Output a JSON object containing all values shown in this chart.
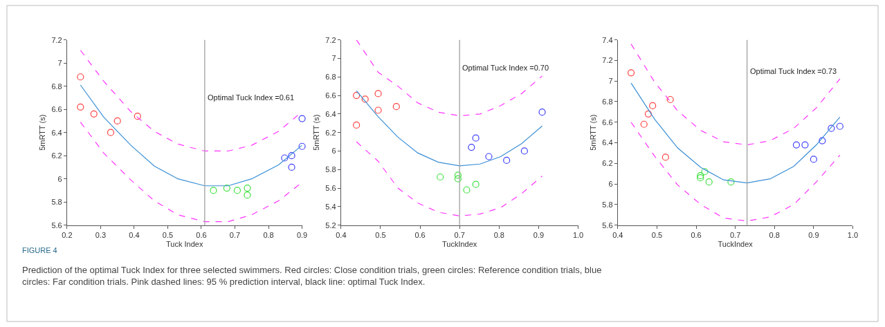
{
  "chart_data": [
    {
      "type": "scatter",
      "xlabel": "Tuck Index",
      "ylabel": "5mRTT (s)",
      "xlim": [
        0.2,
        0.9
      ],
      "xticks": [
        0.2,
        0.3,
        0.4,
        0.5,
        0.6,
        0.7,
        0.8,
        0.9
      ],
      "ylim": [
        5.6,
        7.2
      ],
      "yticks": [
        5.6,
        5.8,
        6,
        6.2,
        6.4,
        6.6,
        6.8,
        7,
        7.2
      ],
      "ref_lines": [
        {
          "axis": "x",
          "value": 0.61,
          "label": "Optimal Tuck Index =0.61",
          "color": "#a0a0a0"
        }
      ],
      "series": [
        {
          "marker": "circle",
          "color": "#ff4040",
          "x": [
            0.24,
            0.24,
            0.28,
            0.33,
            0.35,
            0.41
          ],
          "values": [
            6.88,
            6.62,
            6.56,
            6.4,
            6.5,
            6.54
          ]
        },
        {
          "marker": "circle",
          "color": "#40e040",
          "x": [
            0.636,
            0.676,
            0.707,
            0.737,
            0.737
          ],
          "values": [
            5.9,
            5.92,
            5.9,
            5.92,
            5.86
          ]
        },
        {
          "marker": "circle",
          "color": "#4040ff",
          "x": [
            0.848,
            0.869,
            0.869,
            0.9,
            0.9
          ],
          "values": [
            6.18,
            6.2,
            6.1,
            6.52,
            6.28
          ]
        },
        {
          "type": "line",
          "marker": "none",
          "color": "#3a8fd6",
          "line_style": "solid",
          "x": [
            0.24,
            0.31,
            0.39,
            0.46,
            0.53,
            0.61,
            0.68,
            0.75,
            0.83,
            0.9
          ],
          "values": [
            6.81,
            6.53,
            6.29,
            6.11,
            6.0,
            5.94,
            5.94,
            6.0,
            6.12,
            6.29
          ]
        },
        {
          "type": "line",
          "marker": "none",
          "color": "#ff33ff",
          "line_style": "dashed",
          "x": [
            0.24,
            0.31,
            0.39,
            0.46,
            0.53,
            0.61,
            0.68,
            0.75,
            0.83,
            0.9
          ],
          "values": [
            7.11,
            6.84,
            6.58,
            6.41,
            6.3,
            6.24,
            6.24,
            6.29,
            6.41,
            6.58
          ]
        },
        {
          "type": "line",
          "marker": "none",
          "color": "#ff33ff",
          "line_style": "dashed",
          "x": [
            0.24,
            0.31,
            0.39,
            0.46,
            0.53,
            0.61,
            0.68,
            0.75,
            0.83,
            0.9
          ],
          "values": [
            6.49,
            6.22,
            5.99,
            5.81,
            5.69,
            5.63,
            5.63,
            5.69,
            5.81,
            5.97
          ]
        }
      ],
      "annotations": [
        "FIGURE 4",
        "Prediction of the optimal Tuck Index for three selected swimmers. Red circles: Close condition trials, green circles: Reference condition trials, blue circles: Far condition trials. Pink dashed lines: 95 % prediction interval, black line: optimal Tuck Index."
      ]
    },
    {
      "type": "scatter",
      "xlabel": "TuckIndex",
      "ylabel": "5mRTT (s)",
      "xlim": [
        0.4,
        1.0
      ],
      "xticks": [
        0.4,
        0.5,
        0.6,
        0.7,
        0.8,
        0.9,
        {
          "value": 1.0,
          "label": "1.0"
        }
      ],
      "ylim": [
        5.2,
        7.2
      ],
      "yticks": [
        5.2,
        5.4,
        5.6,
        5.8,
        6,
        6.2,
        6.4,
        6.6,
        6.8,
        7,
        7.2
      ],
      "ref_lines": [
        {
          "axis": "x",
          "value": 0.7,
          "label": "Optimal Tuck Index =0.70",
          "color": "#a0a0a0"
        }
      ],
      "series": [
        {
          "marker": "circle",
          "color": "#ff4040",
          "x": [
            0.439,
            0.461,
            0.494,
            0.494,
            0.54,
            0.439
          ],
          "values": [
            6.6,
            6.56,
            6.62,
            6.44,
            6.48,
            6.28
          ]
        },
        {
          "marker": "circle",
          "color": "#40e040",
          "x": [
            0.651,
            0.696,
            0.696,
            0.718,
            0.741
          ],
          "values": [
            5.72,
            5.74,
            5.7,
            5.58,
            5.64
          ]
        },
        {
          "marker": "circle",
          "color": "#4040ff",
          "x": [
            0.73,
            0.741,
            0.774,
            0.819,
            0.864,
            0.909
          ],
          "values": [
            6.04,
            6.14,
            5.94,
            5.9,
            6.0,
            6.42
          ]
        },
        {
          "type": "line",
          "marker": "none",
          "color": "#3a8fd6",
          "line_style": "solid",
          "x": [
            0.439,
            0.494,
            0.544,
            0.594,
            0.646,
            0.7,
            0.752,
            0.804,
            0.857,
            0.909
          ],
          "values": [
            6.65,
            6.37,
            6.15,
            5.98,
            5.88,
            5.84,
            5.86,
            5.94,
            6.08,
            6.27
          ]
        },
        {
          "type": "line",
          "marker": "none",
          "color": "#ff33ff",
          "line_style": "dashed",
          "x": [
            0.439,
            0.494,
            0.544,
            0.594,
            0.646,
            0.7,
            0.752,
            0.804,
            0.857,
            0.909
          ],
          "values": [
            7.2,
            6.85,
            6.7,
            6.52,
            6.42,
            6.38,
            6.4,
            6.49,
            6.62,
            6.81
          ]
        },
        {
          "type": "line",
          "marker": "none",
          "color": "#ff33ff",
          "line_style": "dashed",
          "x": [
            0.439,
            0.494,
            0.544,
            0.594,
            0.646,
            0.7,
            0.752,
            0.804,
            0.857,
            0.909
          ],
          "values": [
            6.1,
            5.89,
            5.6,
            5.44,
            5.34,
            5.3,
            5.32,
            5.39,
            5.54,
            5.73
          ]
        }
      ]
    },
    {
      "type": "scatter",
      "xlabel": "TuckIndex",
      "ylabel": "5mRTT (s)",
      "xlim": [
        0.4,
        1.0
      ],
      "xticks": [
        0.4,
        0.5,
        0.6,
        0.7,
        0.8,
        0.9,
        {
          "value": 1.0,
          "label": "1.0"
        }
      ],
      "ylim": [
        5.6,
        7.4
      ],
      "yticks": [
        5.6,
        5.8,
        6,
        6.2,
        6.4,
        6.6,
        6.8,
        7,
        7.2,
        7.4
      ],
      "ref_lines": [
        {
          "axis": "x",
          "value": 0.73,
          "label": "Optimal Tuck Index =0.73",
          "color": "#a0a0a0"
        }
      ],
      "series": [
        {
          "marker": "circle",
          "color": "#ff4040",
          "x": [
            0.434,
            0.467,
            0.478,
            0.489,
            0.522,
            0.534
          ],
          "values": [
            7.08,
            6.58,
            6.68,
            6.76,
            6.26,
            6.82
          ]
        },
        {
          "marker": "circle",
          "color": "#40e040",
          "x": [
            0.611,
            0.611,
            0.622,
            0.633,
            0.689
          ],
          "values": [
            6.08,
            6.06,
            6.12,
            6.02,
            6.02
          ]
        },
        {
          "marker": "circle",
          "color": "#4040ff",
          "x": [
            0.856,
            0.878,
            0.9,
            0.922,
            0.945,
            0.967
          ],
          "values": [
            6.38,
            6.38,
            6.24,
            6.42,
            6.54,
            6.56
          ]
        },
        {
          "type": "line",
          "marker": "none",
          "color": "#3a8fd6",
          "line_style": "solid",
          "x": [
            0.434,
            0.494,
            0.553,
            0.612,
            0.67,
            0.73,
            0.789,
            0.849,
            0.907,
            0.967
          ],
          "values": [
            6.98,
            6.63,
            6.35,
            6.16,
            6.04,
            6.01,
            6.05,
            6.17,
            6.38,
            6.65
          ]
        },
        {
          "type": "line",
          "marker": "none",
          "color": "#ff33ff",
          "line_style": "dashed",
          "x": [
            0.434,
            0.494,
            0.553,
            0.612,
            0.67,
            0.73,
            0.789,
            0.849,
            0.907,
            0.967
          ],
          "values": [
            7.36,
            6.99,
            6.71,
            6.52,
            6.41,
            6.38,
            6.42,
            6.54,
            6.74,
            7.02
          ]
        },
        {
          "type": "line",
          "marker": "none",
          "color": "#ff33ff",
          "line_style": "dashed",
          "x": [
            0.434,
            0.494,
            0.553,
            0.612,
            0.67,
            0.73,
            0.789,
            0.849,
            0.907,
            0.967
          ],
          "values": [
            6.6,
            6.27,
            5.99,
            5.8,
            5.67,
            5.64,
            5.68,
            5.8,
            6.02,
            6.28
          ]
        }
      ]
    }
  ]
}
